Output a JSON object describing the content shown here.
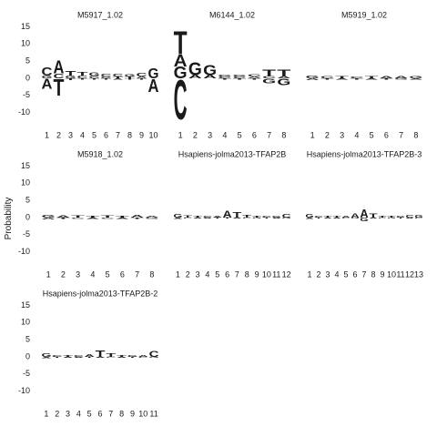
{
  "chart_data": [
    {
      "type": "logo",
      "title": "M5917_1.02",
      "ylabel": "Probability",
      "ylim": [
        -13,
        17
      ],
      "yticks": [
        -10,
        -5,
        0,
        5,
        10,
        15
      ],
      "x": [
        1,
        2,
        3,
        4,
        5,
        6,
        7,
        8,
        9,
        10
      ],
      "stacks": [
        [
          {
            "base": "G",
            "height": 0.8
          },
          {
            "base": "C",
            "height": 2.5
          },
          {
            "base": "A",
            "height": -3
          }
        ],
        [
          {
            "base": "C",
            "height": 1.5
          },
          {
            "base": "A",
            "height": 4
          },
          {
            "base": "T",
            "height": -5
          }
        ],
        [
          {
            "base": "G",
            "height": 0.8
          },
          {
            "base": "T",
            "height": 1.5
          },
          {
            "base": "T",
            "height": -0.5
          }
        ],
        [
          {
            "base": "C",
            "height": 0.8
          },
          {
            "base": "T",
            "height": 1
          },
          {
            "base": "T",
            "height": -0.4
          }
        ],
        [
          {
            "base": "C",
            "height": 0.7
          },
          {
            "base": "G",
            "height": 1
          },
          {
            "base": "T",
            "height": -0.4
          }
        ],
        [
          {
            "base": "G",
            "height": 0.6
          },
          {
            "base": "C",
            "height": 0.8
          },
          {
            "base": "T",
            "height": -0.4
          }
        ],
        [
          {
            "base": "T",
            "height": 0.5
          },
          {
            "base": "C",
            "height": 0.8
          },
          {
            "base": "A",
            "height": -0.4
          }
        ],
        [
          {
            "base": "T",
            "height": 0.5
          },
          {
            "base": "G",
            "height": 0.7
          },
          {
            "base": "T",
            "height": -0.4
          }
        ],
        [
          {
            "base": "A",
            "height": 0.5
          },
          {
            "base": "C",
            "height": 1
          },
          {
            "base": "T",
            "height": -0.4
          }
        ],
        [
          {
            "base": "G",
            "height": 3
          },
          {
            "base": "A",
            "height": -4
          }
        ]
      ]
    },
    {
      "type": "logo",
      "title": "M6144_1.02",
      "ylim": [
        -13,
        17
      ],
      "x": [
        1,
        2,
        3,
        4,
        5,
        6,
        7,
        8
      ],
      "stacks": [
        [
          {
            "base": "G",
            "height": 3.5
          },
          {
            "base": "A",
            "height": 3.5
          },
          {
            "base": "T",
            "height": 7
          },
          {
            "base": "C",
            "height": -12
          }
        ],
        [
          {
            "base": "A",
            "height": 1
          },
          {
            "base": "G",
            "height": 4
          }
        ],
        [
          {
            "base": "A",
            "height": 1
          },
          {
            "base": "G",
            "height": 3
          }
        ],
        [
          {
            "base": "C",
            "height": 0.5
          },
          {
            "base": "G",
            "height": 0.6
          },
          {
            "base": "T",
            "height": -0.4
          }
        ],
        [
          {
            "base": "C",
            "height": 0.5
          },
          {
            "base": "G",
            "height": 0.6
          },
          {
            "base": "T",
            "height": -0.4
          }
        ],
        [
          {
            "base": "A",
            "height": 0.5
          },
          {
            "base": "C",
            "height": 0.7
          },
          {
            "base": "T",
            "height": -0.4
          }
        ],
        [
          {
            "base": "C",
            "height": 0.7
          },
          {
            "base": "T",
            "height": 2
          },
          {
            "base": "G",
            "height": -1.5
          }
        ],
        [
          {
            "base": "A",
            "height": 0.7
          },
          {
            "base": "T",
            "height": 2
          },
          {
            "base": "G",
            "height": -2
          }
        ]
      ]
    },
    {
      "type": "logo",
      "title": "M5919_1.02",
      "ylim": [
        -13,
        17
      ],
      "x": [
        1,
        2,
        3,
        4,
        5,
        6,
        7,
        8
      ],
      "stacks": [
        [
          {
            "base": "G",
            "height": 0.8
          },
          {
            "base": "A",
            "height": -0.5
          }
        ],
        [
          {
            "base": "C",
            "height": 0.7
          },
          {
            "base": "T",
            "height": -0.4
          }
        ],
        [
          {
            "base": "T",
            "height": 0.7
          },
          {
            "base": "A",
            "height": -0.4
          }
        ],
        [
          {
            "base": "C",
            "height": 0.6
          },
          {
            "base": "T",
            "height": -0.4
          }
        ],
        [
          {
            "base": "T",
            "height": 0.7
          },
          {
            "base": "A",
            "height": -0.4
          }
        ],
        [
          {
            "base": "A",
            "height": 0.7
          },
          {
            "base": "T",
            "height": -0.4
          }
        ],
        [
          {
            "base": "A",
            "height": 0.7
          },
          {
            "base": "G",
            "height": -0.4
          }
        ],
        [
          {
            "base": "G",
            "height": 0.7
          },
          {
            "base": "A",
            "height": -0.4
          }
        ]
      ]
    },
    {
      "type": "logo",
      "title": "M5918_1.02",
      "ylim": [
        -13,
        17
      ],
      "yticks": [
        -10,
        -5,
        0,
        5,
        10,
        15
      ],
      "x": [
        1,
        2,
        3,
        4,
        5,
        6,
        7,
        8
      ],
      "stacks": [
        [
          {
            "base": "G",
            "height": 0.8
          },
          {
            "base": "A",
            "height": -0.5
          }
        ],
        [
          {
            "base": "A",
            "height": 0.7
          },
          {
            "base": "T",
            "height": -0.4
          }
        ],
        [
          {
            "base": "T",
            "height": 0.7
          },
          {
            "base": "C",
            "height": -0.4
          }
        ],
        [
          {
            "base": "T",
            "height": 0.6
          },
          {
            "base": "A",
            "height": -0.4
          }
        ],
        [
          {
            "base": "T",
            "height": 0.7
          },
          {
            "base": "C",
            "height": -0.4
          }
        ],
        [
          {
            "base": "T",
            "height": 0.6
          },
          {
            "base": "A",
            "height": -0.4
          }
        ],
        [
          {
            "base": "A",
            "height": 0.8
          },
          {
            "base": "T",
            "height": -0.4
          }
        ],
        [
          {
            "base": "A",
            "height": 0.6
          },
          {
            "base": "G",
            "height": -0.4
          }
        ]
      ]
    },
    {
      "type": "logo",
      "title": "Hsapiens-jolma2013-TFAP2B",
      "ylim": [
        -13,
        17
      ],
      "x": [
        1,
        2,
        3,
        4,
        5,
        6,
        7,
        8,
        9,
        10,
        11,
        12
      ],
      "stacks": [
        [
          {
            "base": "G",
            "height": 1
          },
          {
            "base": "A",
            "height": -0.4
          }
        ],
        [
          {
            "base": "T",
            "height": 0.7
          },
          {
            "base": "C",
            "height": -0.3
          }
        ],
        [
          {
            "base": "T",
            "height": 0.6
          },
          {
            "base": "A",
            "height": -0.3
          }
        ],
        [
          {
            "base": "C",
            "height": 0.5
          },
          {
            "base": "A",
            "height": -0.3
          }
        ],
        [
          {
            "base": "A",
            "height": 0.6
          },
          {
            "base": "T",
            "height": -0.3
          }
        ],
        [
          {
            "base": "A",
            "height": 2.2
          },
          {
            "base": "T",
            "height": -0.3
          }
        ],
        [
          {
            "base": "T",
            "height": 1.6
          },
          {
            "base": "A",
            "height": -0.3
          }
        ],
        [
          {
            "base": "T",
            "height": 0.8
          },
          {
            "base": "C",
            "height": -0.3
          }
        ],
        [
          {
            "base": "T",
            "height": 0.5
          },
          {
            "base": "G",
            "height": -0.3
          }
        ],
        [
          {
            "base": "C",
            "height": 0.5
          },
          {
            "base": "T",
            "height": -0.3
          }
        ],
        [
          {
            "base": "G",
            "height": 0.6
          },
          {
            "base": "A",
            "height": -0.3
          }
        ],
        [
          {
            "base": "C",
            "height": 1
          },
          {
            "base": "G",
            "height": -0.3
          }
        ]
      ]
    },
    {
      "type": "logo",
      "title": "Hsapiens-jolma2013-TFAP2B-3",
      "ylim": [
        -13,
        17
      ],
      "x": [
        1,
        2,
        3,
        4,
        5,
        6,
        7,
        8,
        9,
        10,
        11,
        12,
        13
      ],
      "stacks": [
        [
          {
            "base": "G",
            "height": 1
          },
          {
            "base": "A",
            "height": -0.4
          }
        ],
        [
          {
            "base": "C",
            "height": 0.6
          },
          {
            "base": "T",
            "height": -0.3
          }
        ],
        [
          {
            "base": "T",
            "height": 0.6
          },
          {
            "base": "A",
            "height": -0.3
          }
        ],
        [
          {
            "base": "T",
            "height": 0.6
          },
          {
            "base": "A",
            "height": -0.3
          }
        ],
        [
          {
            "base": "A",
            "height": 0.6
          },
          {
            "base": "C",
            "height": -0.3
          }
        ],
        [
          {
            "base": "A",
            "height": 1.2
          },
          {
            "base": "G",
            "height": -0.3
          }
        ],
        [
          {
            "base": "A",
            "height": 2.5
          },
          {
            "base": "G",
            "height": -1
          }
        ],
        [
          {
            "base": "T",
            "height": 1.2
          },
          {
            "base": "A",
            "height": -0.3
          }
        ],
        [
          {
            "base": "T",
            "height": 0.6
          },
          {
            "base": "C",
            "height": -0.3
          }
        ],
        [
          {
            "base": "T",
            "height": 0.5
          },
          {
            "base": "G",
            "height": -0.3
          }
        ],
        [
          {
            "base": "G",
            "height": 0.6
          },
          {
            "base": "T",
            "height": -0.3
          }
        ],
        [
          {
            "base": "C",
            "height": 0.8
          },
          {
            "base": "A",
            "height": -0.3
          }
        ],
        [
          {
            "base": "G",
            "height": 0.8
          },
          {
            "base": "C",
            "height": -0.3
          }
        ]
      ]
    },
    {
      "type": "logo",
      "title": "Hsapiens-jolma2013-TFAP2B-2",
      "ylim": [
        -13,
        17
      ],
      "yticks": [
        -10,
        -5,
        0,
        5,
        10,
        15
      ],
      "x": [
        1,
        2,
        3,
        4,
        5,
        6,
        7,
        8,
        9,
        10,
        11
      ],
      "stacks": [
        [
          {
            "base": "G",
            "height": 1
          },
          {
            "base": "A",
            "height": -0.4
          }
        ],
        [
          {
            "base": "C",
            "height": 0.6
          },
          {
            "base": "T",
            "height": -0.3
          }
        ],
        [
          {
            "base": "T",
            "height": 0.6
          },
          {
            "base": "A",
            "height": -0.3
          }
        ],
        [
          {
            "base": "C",
            "height": 0.5
          },
          {
            "base": "A",
            "height": -0.3
          }
        ],
        [
          {
            "base": "A",
            "height": 0.8
          },
          {
            "base": "T",
            "height": -0.3
          }
        ],
        [
          {
            "base": "T",
            "height": 2
          },
          {
            "base": "A",
            "height": -0.3
          }
        ],
        [
          {
            "base": "T",
            "height": 1
          },
          {
            "base": "C",
            "height": -0.3
          }
        ],
        [
          {
            "base": "T",
            "height": 0.6
          },
          {
            "base": "A",
            "height": -0.3
          }
        ],
        [
          {
            "base": "G",
            "height": 0.5
          },
          {
            "base": "T",
            "height": -0.3
          }
        ],
        [
          {
            "base": "A",
            "height": 0.6
          },
          {
            "base": "C",
            "height": -0.3
          }
        ],
        [
          {
            "base": "C",
            "height": 1.8
          },
          {
            "base": "G",
            "height": -0.3
          }
        ]
      ]
    }
  ]
}
